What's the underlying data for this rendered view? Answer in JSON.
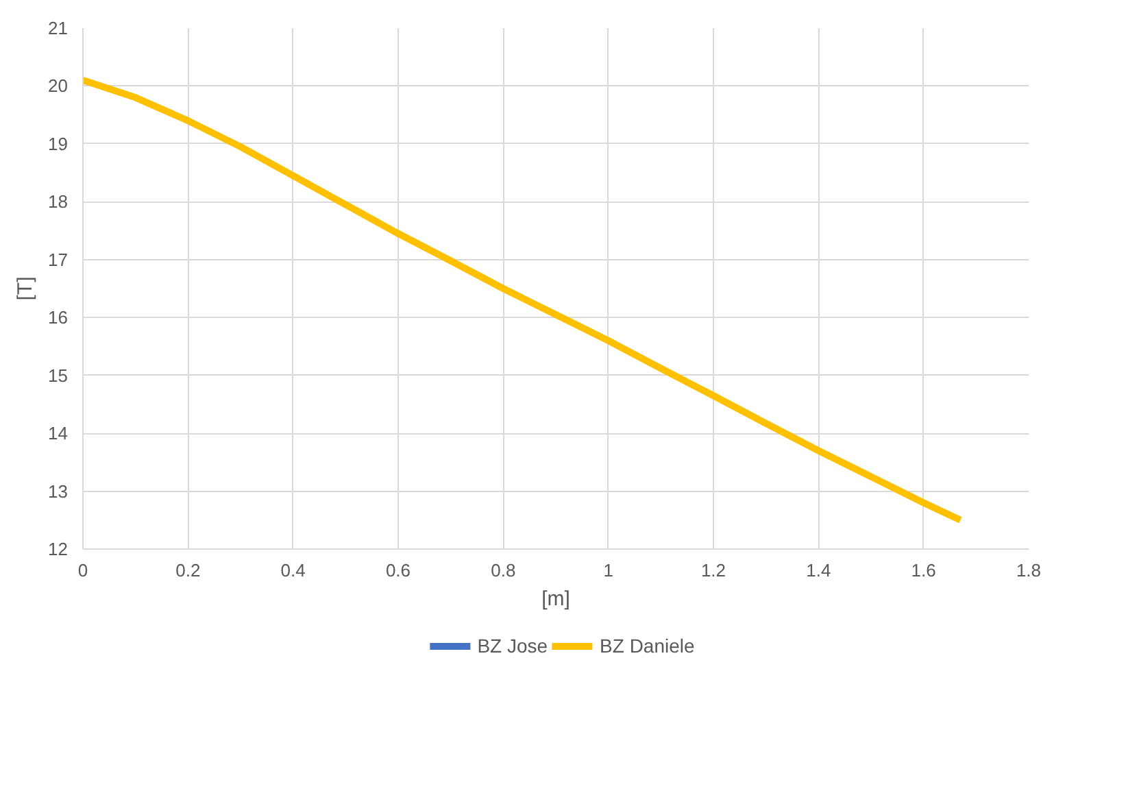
{
  "chart_data": {
    "type": "line",
    "xlabel": "[m]",
    "ylabel": "[T]",
    "x": [
      0,
      0.1,
      0.2,
      0.3,
      0.4,
      0.5,
      0.6,
      0.7,
      0.8,
      0.9,
      1.0,
      1.1,
      1.2,
      1.3,
      1.4,
      1.5,
      1.6,
      1.67
    ],
    "series": [
      {
        "name": "BZ Jose",
        "color": "#4472c4",
        "values": [
          null,
          null,
          null,
          null,
          null,
          null,
          null,
          null,
          null,
          null,
          null,
          null,
          null,
          null,
          null,
          null,
          null,
          null
        ]
      },
      {
        "name": "BZ Daniele",
        "color": "#ffc000",
        "values": [
          20.1,
          19.8,
          19.4,
          18.95,
          18.45,
          17.95,
          17.45,
          16.98,
          16.5,
          16.05,
          15.6,
          15.12,
          14.65,
          14.17,
          13.7,
          13.25,
          12.8,
          12.5
        ]
      }
    ],
    "xlim": [
      0,
      1.8
    ],
    "xticks": [
      0,
      0.2,
      0.4,
      0.6,
      0.8,
      1,
      1.2,
      1.4,
      1.6,
      1.8
    ],
    "ylim": [
      12,
      21
    ],
    "yticks": [
      12,
      13,
      14,
      15,
      16,
      17,
      18,
      19,
      20,
      21
    ],
    "grid": true,
    "legend": "bottom",
    "line_style": "solid",
    "marker": "none"
  }
}
